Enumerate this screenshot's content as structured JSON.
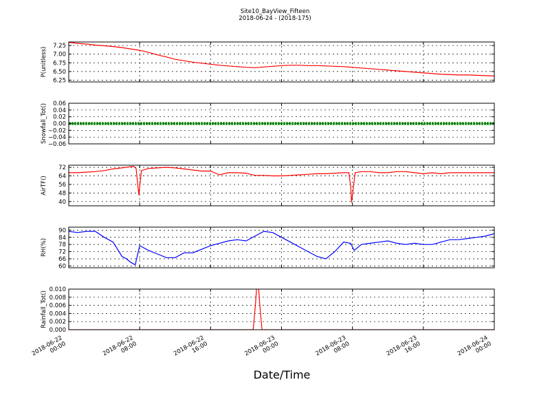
{
  "figure": {
    "title_line1": "Site10_BayView_Fifteen",
    "title_line2": "2018-06-24 - (2018-175)",
    "xlabel": "Date/Time",
    "colors": {
      "red": "#ff0000",
      "green": "#008000",
      "blue": "#0000ff"
    }
  },
  "chart_data": [
    {
      "type": "line",
      "ylabel": "P(unitless)",
      "ylim": [
        6.2,
        7.35
      ],
      "yticks": [
        6.25,
        6.5,
        6.75,
        7.0,
        7.25
      ],
      "ytick_labels": [
        "6.25",
        "6.50",
        "6.75",
        "7.00",
        "7.25"
      ],
      "grid": true,
      "x_hours": [
        0,
        1,
        2,
        3,
        4,
        5,
        6,
        8,
        9,
        10,
        11,
        12,
        13,
        14,
        15,
        16,
        17,
        18,
        19,
        20,
        21,
        22,
        23,
        24,
        25,
        26,
        27,
        28,
        29,
        30,
        31,
        32,
        33,
        34,
        35,
        36,
        37,
        38,
        39,
        40,
        41,
        42,
        43,
        44,
        45,
        46,
        47,
        48
      ],
      "series": [
        {
          "color": "#ff0000",
          "values": [
            7.34,
            7.31,
            7.29,
            7.26,
            7.24,
            7.22,
            7.19,
            7.11,
            7.05,
            6.98,
            6.92,
            6.85,
            6.81,
            6.77,
            6.74,
            6.71,
            6.68,
            6.66,
            6.64,
            6.62,
            6.61,
            6.63,
            6.65,
            6.67,
            6.68,
            6.68,
            6.67,
            6.67,
            6.66,
            6.65,
            6.64,
            6.62,
            6.6,
            6.58,
            6.56,
            6.54,
            6.52,
            6.5,
            6.48,
            6.46,
            6.44,
            6.42,
            6.41,
            6.4,
            6.4,
            6.39,
            6.38,
            6.37
          ]
        }
      ]
    },
    {
      "type": "line",
      "ylabel": "Snowfall_Tot()",
      "ylim": [
        -0.06,
        0.06
      ],
      "yticks": [
        -0.06,
        -0.04,
        -0.02,
        0.0,
        0.02,
        0.04,
        0.06
      ],
      "ytick_labels": [
        "−0.06",
        "−0.04",
        "−0.02",
        "0.00",
        "0.02",
        "0.04",
        "0.06"
      ],
      "grid": true,
      "x_hours": [
        0,
        48
      ],
      "series": [
        {
          "color": "#008000",
          "values": [
            0,
            0
          ]
        }
      ]
    },
    {
      "type": "line",
      "ylabel": "AirTF()",
      "ylim": [
        36,
        74
      ],
      "yticks": [
        40,
        48,
        56,
        64,
        72
      ],
      "ytick_labels": [
        "40",
        "48",
        "56",
        "64",
        "72"
      ],
      "grid": true,
      "x_hours": [
        0,
        1,
        2,
        3,
        4,
        5,
        6,
        7.3,
        7.6,
        7.9,
        8.2,
        9,
        10,
        11,
        12,
        13,
        14,
        15,
        16,
        17,
        18,
        19,
        20,
        21,
        22,
        23,
        24,
        25,
        26,
        27,
        28,
        29,
        30,
        31,
        31.6,
        31.8,
        31.9,
        32.3,
        33,
        34,
        35,
        36,
        37,
        38,
        39,
        40,
        41,
        42,
        43,
        44,
        45,
        46,
        47,
        48
      ],
      "series": [
        {
          "color": "#ff0000",
          "values": [
            67,
            67,
            67.5,
            68,
            69,
            70.5,
            71.5,
            73,
            71,
            46,
            69,
            71,
            71.5,
            72,
            71.5,
            70.5,
            69.5,
            68.5,
            68.5,
            65,
            67,
            67,
            66.5,
            64.5,
            64.5,
            64,
            64,
            64.5,
            65,
            65.5,
            66,
            66,
            66.5,
            67,
            67,
            54,
            39,
            67,
            68,
            68,
            67,
            67,
            68,
            68,
            67,
            66,
            67,
            66,
            67,
            67,
            67,
            67,
            67,
            67
          ]
        }
      ]
    },
    {
      "type": "line",
      "ylabel": "RH(%)",
      "ylim": [
        58.5,
        92.5
      ],
      "yticks": [
        60,
        66,
        72,
        78,
        84,
        90
      ],
      "ytick_labels": [
        "60",
        "66",
        "72",
        "78",
        "84",
        "90"
      ],
      "grid": true,
      "x_hours": [
        0,
        1,
        2,
        3,
        4,
        5,
        6,
        6.5,
        7,
        7.5,
        8,
        9,
        10,
        11,
        12,
        13,
        14,
        15,
        16,
        17,
        18,
        19,
        20,
        21,
        22,
        23,
        24,
        25,
        26,
        27,
        28,
        29,
        30,
        31,
        31.8,
        32.2,
        33,
        34,
        35,
        36,
        37,
        38,
        39,
        40,
        41,
        42,
        43,
        44,
        45,
        46,
        47,
        48
      ],
      "series": [
        {
          "color": "#0000ff",
          "values": [
            89,
            88,
            89,
            89,
            84,
            80,
            68,
            66,
            63,
            61,
            77,
            73,
            70,
            67,
            67,
            71,
            71,
            74,
            77,
            79,
            81,
            82,
            81,
            85,
            89,
            88,
            84,
            80,
            76,
            72,
            68,
            66,
            72,
            80,
            79,
            73,
            78,
            79,
            80,
            81,
            79,
            78,
            79,
            78,
            78,
            80,
            82,
            82,
            83,
            84,
            85,
            87
          ]
        }
      ]
    },
    {
      "type": "line",
      "ylabel": "Rainfall_Tot()",
      "ylim": [
        0,
        0.01
      ],
      "yticks": [
        0,
        0.002,
        0.004,
        0.006,
        0.008,
        0.01
      ],
      "ytick_labels": [
        "0.000",
        "0.002",
        "0.004",
        "0.006",
        "0.008",
        "0.010"
      ],
      "grid": true,
      "x_hours": [
        0,
        20.8,
        21.05,
        21.3,
        21.55,
        21.8,
        48
      ],
      "series": [
        {
          "color": "#ff0000",
          "values": [
            0,
            0,
            0.006,
            0.014,
            0.006,
            0,
            0
          ]
        }
      ]
    }
  ],
  "x_axis": {
    "range_hours": [
      0,
      48
    ],
    "tick_hours": [
      0,
      8,
      16,
      24,
      32,
      40,
      48
    ],
    "tick_labels": [
      [
        "2018-06-22",
        "00:00"
      ],
      [
        "2018-06-22",
        "08:00"
      ],
      [
        "2018-06-22",
        "16:00"
      ],
      [
        "2018-06-23",
        "00:00"
      ],
      [
        "2018-06-23",
        "08:00"
      ],
      [
        "2018-06-23",
        "16:00"
      ],
      [
        "2018-06-24",
        "00:00"
      ]
    ]
  }
}
